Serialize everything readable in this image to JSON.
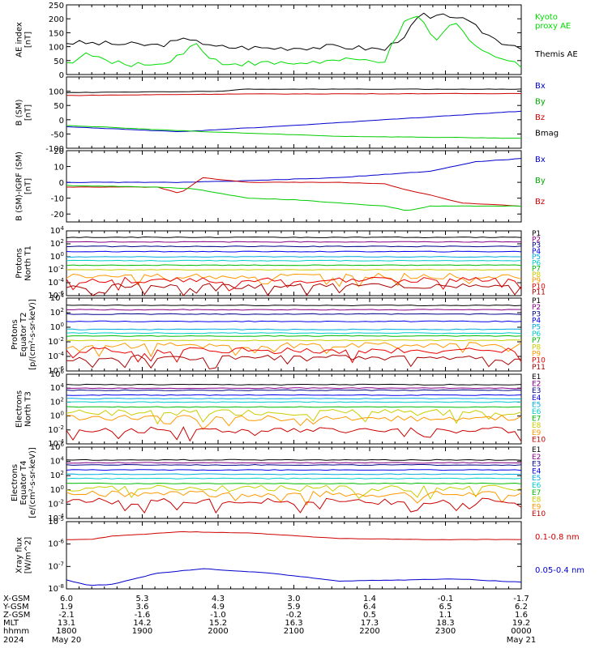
{
  "chart_data": [
    {
      "type": "line",
      "ylabel": "AE index\n[nT]",
      "ylim": [
        0,
        250
      ],
      "yticks": [
        0,
        50,
        100,
        150,
        200,
        250
      ],
      "legend": [
        {
          "text": "Kyoto\nproxy AE",
          "color": "#00dd00"
        },
        {
          "text": "Themis AE",
          "color": "#000000"
        }
      ],
      "series": [
        {
          "color": "#000000",
          "shape": "themis_ae"
        },
        {
          "color": "#00dd00",
          "shape": "kyoto_ae"
        }
      ]
    },
    {
      "type": "line",
      "ylabel": "B (SM)\n[nT]",
      "ylim": [
        -100,
        150
      ],
      "yticks": [
        -100,
        -50,
        0,
        50,
        100
      ],
      "legend": [
        {
          "text": "Bx",
          "color": "#0000cc"
        },
        {
          "text": "By",
          "color": "#00aa00"
        },
        {
          "text": "Bz",
          "color": "#cc0000"
        },
        {
          "text": "Bmag",
          "color": "#000000"
        }
      ],
      "series": [
        {
          "color": "#000000",
          "values": [
            [
              0,
              95
            ],
            [
              0.35,
              100
            ],
            [
              0.38,
              107
            ],
            [
              1,
              107
            ]
          ]
        },
        {
          "color": "#cc0000",
          "values": [
            [
              0,
              85
            ],
            [
              0.35,
              90
            ],
            [
              1,
              92
            ]
          ]
        },
        {
          "color": "#0000cc",
          "values": [
            [
              0,
              -25
            ],
            [
              0.25,
              -42
            ],
            [
              0.5,
              -20
            ],
            [
              0.75,
              5
            ],
            [
              1,
              30
            ]
          ]
        },
        {
          "color": "#00cc00",
          "values": [
            [
              0,
              -20
            ],
            [
              0.3,
              -42
            ],
            [
              0.6,
              -58
            ],
            [
              1,
              -65
            ]
          ]
        }
      ]
    },
    {
      "type": "line",
      "ylabel": "B (SM)-IGRF (SM)\n[nT]",
      "ylim": [
        -25,
        20
      ],
      "yticks": [
        -20,
        -10,
        0,
        10,
        20
      ],
      "legend": [
        {
          "text": "Bx",
          "color": "#0000cc"
        },
        {
          "text": "By",
          "color": "#00aa00"
        },
        {
          "text": "Bz",
          "color": "#cc0000"
        }
      ],
      "series": [
        {
          "color": "#0000cc",
          "values": [
            [
              0,
              0
            ],
            [
              0.25,
              0
            ],
            [
              0.4,
              1
            ],
            [
              0.6,
              3
            ],
            [
              0.7,
              5
            ],
            [
              0.8,
              7
            ],
            [
              0.85,
              10
            ],
            [
              0.9,
              13
            ],
            [
              1,
              15
            ]
          ]
        },
        {
          "color": "#cc0000",
          "values": [
            [
              0,
              -3
            ],
            [
              0.2,
              -3
            ],
            [
              0.25,
              -7
            ],
            [
              0.3,
              3
            ],
            [
              0.4,
              0
            ],
            [
              0.6,
              0
            ],
            [
              0.7,
              -1
            ],
            [
              0.75,
              -5
            ],
            [
              0.8,
              -8
            ],
            [
              0.87,
              -13
            ],
            [
              1,
              -15
            ]
          ]
        },
        {
          "color": "#00cc00",
          "values": [
            [
              0,
              -2
            ],
            [
              0.2,
              -3
            ],
            [
              0.28,
              -4
            ],
            [
              0.4,
              -10
            ],
            [
              0.5,
              -11
            ],
            [
              0.6,
              -13
            ],
            [
              0.7,
              -15
            ],
            [
              0.75,
              -18
            ],
            [
              0.8,
              -15
            ],
            [
              1,
              -15
            ]
          ]
        }
      ]
    },
    {
      "type": "line",
      "ylabel": "Protons\nNorth T1",
      "ylog": true,
      "ylim": [
        -6,
        4
      ],
      "yticks": [
        -6,
        -4,
        -2,
        0,
        2,
        4
      ],
      "channels": [
        {
          "name": "P1",
          "color": "#000000",
          "level": 3.0
        },
        {
          "name": "P2",
          "color": "#880088",
          "level": 2.3
        },
        {
          "name": "P3",
          "color": "#000088",
          "level": 1.6
        },
        {
          "name": "P4",
          "color": "#0000ee",
          "level": 0.8
        },
        {
          "name": "P5",
          "color": "#00aadd",
          "level": 0.0
        },
        {
          "name": "P6",
          "color": "#00cccc",
          "level": -0.6
        },
        {
          "name": "P7",
          "color": "#00bb00",
          "level": -1.3
        },
        {
          "name": "P8",
          "color": "#cccc00",
          "level": -2.0
        },
        {
          "name": "P9",
          "color": "#ff9900",
          "level": -3.0
        },
        {
          "name": "P10",
          "color": "#ee0000",
          "level": -3.6
        },
        {
          "name": "P11",
          "color": "#aa0000",
          "level": -4.5
        }
      ]
    },
    {
      "type": "line",
      "ylabel": "Protons\nEquator T2\n[p/(cm²-s-sr-keV)]",
      "ylog": true,
      "ylim": [
        -6,
        4
      ],
      "yticks": [
        -6,
        -4,
        -2,
        0,
        2,
        4
      ],
      "channels": [
        {
          "name": "P1",
          "color": "#000000",
          "level": 3.0
        },
        {
          "name": "P2",
          "color": "#880088",
          "level": 2.4
        },
        {
          "name": "P3",
          "color": "#000088",
          "level": 1.8
        },
        {
          "name": "P4",
          "color": "#0000ee",
          "level": 0.8
        },
        {
          "name": "P5",
          "color": "#00aadd",
          "level": -0.3
        },
        {
          "name": "P6",
          "color": "#00cccc",
          "level": -0.8
        },
        {
          "name": "P7",
          "color": "#00bb00",
          "level": -1.2
        },
        {
          "name": "P8",
          "color": "#cccc00",
          "level": -1.8
        },
        {
          "name": "P9",
          "color": "#ff9900",
          "level": -2.5
        },
        {
          "name": "P10",
          "color": "#ee0000",
          "level": -3.2
        },
        {
          "name": "P11",
          "color": "#aa0000",
          "level": -4.2
        }
      ]
    },
    {
      "type": "line",
      "ylabel": "Electrons\nNorth T3",
      "ylog": true,
      "ylim": [
        -4,
        6
      ],
      "yticks": [
        -4,
        -2,
        0,
        2,
        4,
        6
      ],
      "channels": [
        {
          "name": "E1",
          "color": "#000000",
          "level": 4.5
        },
        {
          "name": "E2",
          "color": "#880088",
          "level": 4.0
        },
        {
          "name": "E3",
          "color": "#000088",
          "level": 3.7
        },
        {
          "name": "E4",
          "color": "#0000ee",
          "level": 3.0
        },
        {
          "name": "E5",
          "color": "#00aadd",
          "level": 2.5
        },
        {
          "name": "E6",
          "color": "#00cccc",
          "level": 2.0
        },
        {
          "name": "E7",
          "color": "#00bb00",
          "level": 1.3
        },
        {
          "name": "E8",
          "color": "#cccc00",
          "level": 0.5
        },
        {
          "name": "E9",
          "color": "#ff9900",
          "level": -0.3
        },
        {
          "name": "E10",
          "color": "#cc0000",
          "level": -2.0
        }
      ]
    },
    {
      "type": "line",
      "ylabel": "Electrons\nEquator T4\n[e/(cm²-s-sr-keV)]",
      "ylog": true,
      "ylim": [
        -4,
        6
      ],
      "yticks": [
        -4,
        -2,
        0,
        2,
        4,
        6
      ],
      "channels": [
        {
          "name": "E1",
          "color": "#000000",
          "level": 4.2
        },
        {
          "name": "E2",
          "color": "#880088",
          "level": 3.8
        },
        {
          "name": "E3",
          "color": "#000088",
          "level": 3.5
        },
        {
          "name": "E4",
          "color": "#0000ee",
          "level": 2.8
        },
        {
          "name": "E5",
          "color": "#00aadd",
          "level": 2.2
        },
        {
          "name": "E6",
          "color": "#00cccc",
          "level": 1.6
        },
        {
          "name": "E7",
          "color": "#00bb00",
          "level": 0.9
        },
        {
          "name": "E8",
          "color": "#cccc00",
          "level": 0.2
        },
        {
          "name": "E9",
          "color": "#ff9900",
          "level": -0.6
        },
        {
          "name": "E10",
          "color": "#cc0000",
          "level": -1.6
        }
      ]
    },
    {
      "type": "line",
      "ylabel": "Xray flux\n[W/m^2]",
      "ylog": true,
      "ylim": [
        -8,
        -5
      ],
      "yticks": [
        -8,
        -7,
        -6,
        -5
      ],
      "legend": [
        {
          "text": "0.1-0.8 nm",
          "color": "#cc0000"
        },
        {
          "text": "0.05-0.4 nm",
          "color": "#0000cc"
        }
      ],
      "series": [
        {
          "color": "#cc0000",
          "values": [
            [
              0,
              -5.8
            ],
            [
              0.05,
              -5.8
            ],
            [
              0.1,
              -5.65
            ],
            [
              0.25,
              -5.45
            ],
            [
              0.4,
              -5.5
            ],
            [
              0.6,
              -5.75
            ],
            [
              0.8,
              -5.8
            ],
            [
              1,
              -5.8
            ]
          ]
        },
        {
          "color": "#0000cc",
          "values": [
            [
              0,
              -7.6
            ],
            [
              0.05,
              -7.85
            ],
            [
              0.1,
              -7.8
            ],
            [
              0.2,
              -7.3
            ],
            [
              0.3,
              -7.1
            ],
            [
              0.45,
              -7.3
            ],
            [
              0.6,
              -7.65
            ],
            [
              0.75,
              -7.6
            ],
            [
              0.85,
              -7.55
            ],
            [
              1,
              -7.7
            ]
          ]
        }
      ]
    }
  ],
  "xaxis": {
    "row_labels": [
      "X-GSM",
      "Y-GSM",
      "Z-GSM",
      "MLT",
      "hhmm",
      "2024"
    ],
    "columns": [
      [
        "6.0",
        "1.9",
        "-2.1",
        "13.1",
        "1800",
        "May 20"
      ],
      [
        "5.3",
        "3.6",
        "-1.6",
        "14.2",
        "1900",
        ""
      ],
      [
        "4.3",
        "4.9",
        "-1.0",
        "15.2",
        "2000",
        ""
      ],
      [
        "3.0",
        "5.9",
        "-0.2",
        "16.3",
        "2100",
        ""
      ],
      [
        "1.4",
        "6.4",
        "0.5",
        "17.3",
        "2200",
        ""
      ],
      [
        "-0.1",
        "6.5",
        "1.1",
        "18.3",
        "2300",
        ""
      ],
      [
        "-1.7",
        "6.2",
        "1.6",
        "19.2",
        "0000",
        "May 21"
      ]
    ]
  }
}
